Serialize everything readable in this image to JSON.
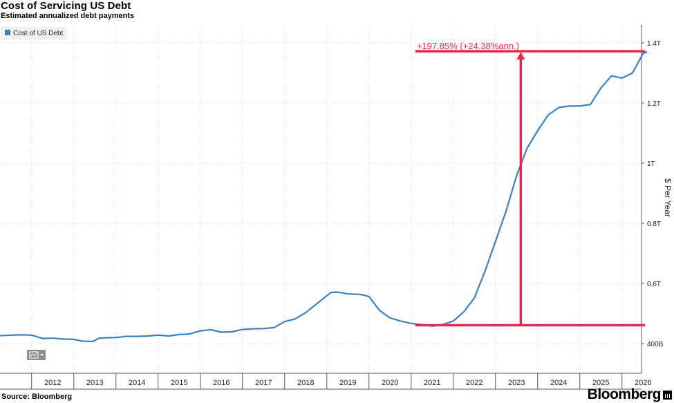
{
  "chart_data": {
    "type": "line",
    "title": "Cost of Servicing US Debt",
    "subtitle": "Estimated annualized debt payments",
    "ylabel": "$ Per Year",
    "source": "Source: Bloomberg",
    "brand": "Bloomberg",
    "legend": {
      "position": "top-left",
      "entries": [
        {
          "name": "Cost of US Debt",
          "color": "#3a7fc1"
        }
      ]
    },
    "grid": true,
    "y_axis_side": "right",
    "xlim": [
      2011.25,
      2026.7
    ],
    "ylim": [
      0.37,
      1.47
    ],
    "x_tick_labels": [
      "2012",
      "2013",
      "2014",
      "2015",
      "2016",
      "2017",
      "2018",
      "2019",
      "2020",
      "2021",
      "2022",
      "2023",
      "2024",
      "2025",
      "2026"
    ],
    "y_ticks": [
      {
        "value": 0.4,
        "label": "400B"
      },
      {
        "value": 0.6,
        "label": "0.6T"
      },
      {
        "value": 0.8,
        "label": "0.8T"
      },
      {
        "value": 1.0,
        "label": "1T"
      },
      {
        "value": 1.2,
        "label": "1.2T"
      },
      {
        "value": 1.4,
        "label": "1.4T"
      }
    ],
    "series": [
      {
        "name": "Cost of US Debt",
        "color": "#3a7fc1",
        "x": [
          2011.25,
          2011.5,
          2011.75,
          2012.0,
          2012.25,
          2012.5,
          2012.75,
          2013.0,
          2013.2,
          2013.45,
          2013.6,
          2013.8,
          2014.0,
          2014.25,
          2014.5,
          2014.75,
          2015.0,
          2015.25,
          2015.5,
          2015.75,
          2016.0,
          2016.25,
          2016.5,
          2016.75,
          2017.0,
          2017.25,
          2017.5,
          2017.75,
          2018.0,
          2018.25,
          2018.5,
          2018.75,
          2019.0,
          2019.1,
          2019.25,
          2019.5,
          2019.75,
          2019.85,
          2020.0,
          2020.25,
          2020.5,
          2020.75,
          2021.0,
          2021.25,
          2021.5,
          2021.75,
          2022.0,
          2022.25,
          2022.5,
          2022.75,
          2023.0,
          2023.25,
          2023.5,
          2023.75,
          2024.0,
          2024.25,
          2024.5,
          2024.75,
          2025.0,
          2025.25,
          2025.5,
          2025.75,
          2026.0,
          2026.25,
          2026.5,
          2026.6
        ],
        "values": [
          0.426,
          0.428,
          0.429,
          0.428,
          0.417,
          0.418,
          0.415,
          0.414,
          0.408,
          0.407,
          0.418,
          0.419,
          0.42,
          0.424,
          0.424,
          0.425,
          0.428,
          0.425,
          0.43,
          0.432,
          0.442,
          0.446,
          0.438,
          0.439,
          0.447,
          0.449,
          0.45,
          0.453,
          0.473,
          0.482,
          0.503,
          0.531,
          0.559,
          0.57,
          0.571,
          0.565,
          0.564,
          0.562,
          0.556,
          0.51,
          0.485,
          0.475,
          0.467,
          0.463,
          0.458,
          0.463,
          0.475,
          0.506,
          0.552,
          0.64,
          0.74,
          0.84,
          0.958,
          1.05,
          1.108,
          1.16,
          1.185,
          1.19,
          1.19,
          1.195,
          1.25,
          1.29,
          1.283,
          1.3,
          1.365,
          1.37
        ]
      }
    ],
    "annotation": {
      "text": "+197.85% (+24.38%ann.)",
      "color": "#e8274b",
      "from": {
        "x": 2021.1,
        "y": 0.461
      },
      "to": {
        "x": 2026.55,
        "y": 1.372
      },
      "arrow_x": 2023.6
    }
  },
  "ui": {
    "chart_type_menu_icon": "line-chart-icon"
  }
}
